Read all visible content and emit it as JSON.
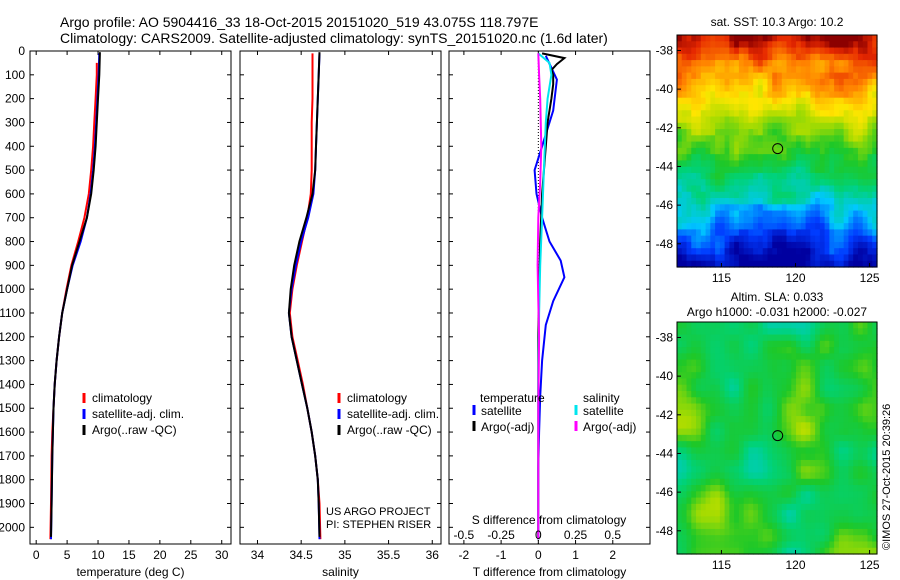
{
  "header": {
    "line1": "Argo profile: AO 5904416_33 18-Oct-2015 20151020_519 43.075S 118.797E",
    "line2": "Climatology: CARS2009. Satellite-adjusted climatology: synTS_20151020.nc (1.6d later)"
  },
  "credits": {
    "project": "US ARGO PROJECT",
    "pi": "PI: STEPHEN RISER",
    "imos": "©IMOS 27-Oct-2015 20:39:26"
  },
  "colors": {
    "climatology": "#ff0000",
    "satellite": "#0000ff",
    "argo": "#000000",
    "sal_satellite": "#00e5ee",
    "sal_argo": "#ff00ff"
  },
  "chart_data": [
    {
      "type": "line",
      "id": "temperature",
      "xlabel": "temperature (deg C)",
      "ylabel": "",
      "xlim": [
        -1,
        31.5
      ],
      "ylim": [
        2070,
        0
      ],
      "xticks": [
        0,
        5,
        10,
        15,
        20,
        25,
        30
      ],
      "yticks": [
        0,
        100,
        200,
        300,
        400,
        500,
        600,
        700,
        800,
        900,
        1000,
        1100,
        1200,
        1300,
        1400,
        1500,
        1600,
        1700,
        1800,
        1900,
        2000
      ],
      "legend": [
        "climatology",
        "satellite-adj. clim.",
        "Argo(..raw -QC)"
      ],
      "series": [
        {
          "name": "climatology",
          "color": "#ff0000",
          "x": [
            9.8,
            9.8,
            9.6,
            9.4,
            9.2,
            8.9,
            8.5,
            7.8,
            6.8,
            5.7,
            4.9,
            4.2,
            3.7,
            3.3,
            3.0,
            2.8,
            2.6,
            2.5,
            2.4,
            2.3
          ],
          "y": [
            50,
            100,
            200,
            300,
            400,
            500,
            600,
            700,
            800,
            900,
            1000,
            1100,
            1200,
            1300,
            1400,
            1500,
            1600,
            1700,
            1900,
            2050
          ]
        },
        {
          "name": "satellite-adj. clim.",
          "color": "#0000ff",
          "x": [
            10.2,
            10.1,
            9.9,
            9.7,
            9.5,
            9.2,
            8.8,
            8.2,
            7.2,
            5.9,
            5.0,
            4.2,
            3.7,
            3.3,
            3.0,
            2.8,
            2.7,
            2.6,
            2.5,
            2.4
          ],
          "y": [
            10,
            100,
            200,
            300,
            400,
            500,
            600,
            700,
            800,
            900,
            1000,
            1100,
            1200,
            1300,
            1400,
            1500,
            1600,
            1700,
            1900,
            2050
          ]
        },
        {
          "name": "Argo(..raw -QC)",
          "color": "#000000",
          "x": [
            10.3,
            10.2,
            10.0,
            9.8,
            9.6,
            9.3,
            8.9,
            8.2,
            7.0,
            5.8,
            5.0,
            4.2,
            3.7,
            3.3,
            3.0,
            2.8,
            2.7,
            2.6,
            2.5,
            2.4
          ],
          "y": [
            5,
            100,
            200,
            300,
            400,
            500,
            600,
            700,
            800,
            900,
            1000,
            1100,
            1200,
            1300,
            1400,
            1500,
            1600,
            1700,
            1900,
            2040
          ]
        }
      ]
    },
    {
      "type": "line",
      "id": "salinity",
      "xlabel": "salinity",
      "ylabel": "",
      "xlim": [
        33.8,
        36.1
      ],
      "ylim": [
        2070,
        0
      ],
      "xticks": [
        34,
        34.5,
        35,
        35.5,
        36
      ],
      "legend": [
        "climatology",
        "satellite-adj. clim.",
        "Argo(..raw -QC)"
      ],
      "series": [
        {
          "name": "climatology",
          "color": "#ff0000",
          "x": [
            34.63,
            34.63,
            34.63,
            34.62,
            34.62,
            34.62,
            34.61,
            34.57,
            34.51,
            34.45,
            34.4,
            34.37,
            34.4,
            34.46,
            34.52,
            34.57,
            34.62,
            34.66,
            34.69,
            34.71,
            34.72
          ],
          "y": [
            10,
            100,
            200,
            300,
            400,
            500,
            600,
            700,
            800,
            900,
            1000,
            1100,
            1200,
            1300,
            1400,
            1500,
            1600,
            1700,
            1800,
            1900,
            2050
          ]
        },
        {
          "name": "satellite-adj. clim.",
          "color": "#0000ff",
          "x": [
            34.71,
            34.7,
            34.69,
            34.68,
            34.67,
            34.66,
            34.64,
            34.58,
            34.5,
            34.44,
            34.39,
            34.36,
            34.39,
            34.45,
            34.51,
            34.57,
            34.62,
            34.66,
            34.69,
            34.7,
            34.71
          ],
          "y": [
            10,
            100,
            200,
            300,
            400,
            500,
            600,
            700,
            800,
            900,
            1000,
            1100,
            1200,
            1300,
            1400,
            1500,
            1600,
            1700,
            1800,
            1900,
            2050
          ]
        },
        {
          "name": "Argo(..raw -QC)",
          "color": "#000000",
          "x": [
            34.71,
            34.7,
            34.69,
            34.68,
            34.67,
            34.66,
            34.63,
            34.56,
            34.48,
            34.42,
            34.38,
            34.36,
            34.39,
            34.45,
            34.51,
            34.57,
            34.62,
            34.66,
            34.69,
            34.7,
            34.71
          ],
          "y": [
            5,
            100,
            200,
            300,
            400,
            500,
            600,
            700,
            800,
            900,
            1000,
            1100,
            1200,
            1300,
            1400,
            1500,
            1600,
            1700,
            1800,
            1900,
            2040
          ]
        }
      ]
    },
    {
      "type": "line",
      "id": "difference",
      "xlabel": "T difference from climatology",
      "xlabel_top": "S difference from climatology",
      "ylabel": "",
      "xlim": [
        -2.4,
        3.0
      ],
      "ylim": [
        2070,
        0
      ],
      "xticks": [
        -2,
        -1,
        0,
        1,
        2
      ],
      "xtick_labels": [
        "-2",
        "-1",
        "0",
        "1",
        "2"
      ],
      "xticks_top": [
        -0.5,
        -0.25,
        0,
        0.25,
        0.5
      ],
      "xtick_labels_top": [
        "-0.5",
        "-0.25",
        "0",
        "0.25",
        "0.5"
      ],
      "legend_left": {
        "title": "temperature",
        "items": [
          "satellite",
          "Argo(-adj)"
        ]
      },
      "legend_right": {
        "title": "salinity",
        "items": [
          "satellite",
          "Argo(-adj)"
        ]
      },
      "series": [
        {
          "name": "temperature satellite",
          "color": "#0000ff",
          "x": [
            0.2,
            0.5,
            0.4,
            0.1,
            -0.1,
            -0.05,
            0.1,
            0.3,
            0.6,
            0.7,
            0.4,
            0.2,
            0.1,
            0.05,
            0.02,
            0,
            0,
            0,
            0,
            0
          ],
          "y": [
            20,
            120,
            250,
            400,
            500,
            600,
            700,
            800,
            880,
            950,
            1050,
            1150,
            1300,
            1450,
            1600,
            1750,
            1850,
            1950,
            2000,
            2050
          ]
        },
        {
          "name": "temperature Argo(-adj)",
          "color": "#000000",
          "x": [
            0.1,
            0.7,
            0.5,
            0.35,
            0.4,
            0.4,
            0.35,
            0.25,
            0.2,
            0.1,
            0.05,
            0.02,
            0,
            0,
            0,
            0
          ],
          "y": [
            10,
            30,
            55,
            80,
            100,
            140,
            200,
            300,
            400,
            600,
            800,
            1000,
            1200,
            1500,
            1800,
            2050
          ]
        },
        {
          "name": "salinity satellite",
          "color": "#00e5ee",
          "x": [
            0.0,
            0.3,
            0.35,
            0.25,
            0.2,
            0.15,
            0.1,
            0.05,
            0.02,
            0,
            0,
            0
          ],
          "y": [
            10,
            50,
            100,
            200,
            300,
            500,
            700,
            900,
            1100,
            1400,
            1800,
            2050
          ]
        },
        {
          "name": "salinity Argo(-adj)",
          "color": "#ff00ff",
          "x": [
            0.0,
            0.02,
            0.05,
            0.08,
            0.05,
            0.0,
            -0.02,
            0.0,
            0.02,
            0.0,
            0.0,
            0.0
          ],
          "y": [
            10,
            100,
            200,
            400,
            550,
            700,
            900,
            1050,
            1200,
            1500,
            1800,
            2050
          ]
        }
      ]
    },
    {
      "type": "heatmap",
      "id": "sst-map",
      "title": "sat. SST: 10.3 Argo: 10.2",
      "xlim": [
        112,
        125.5
      ],
      "ylim": [
        -49.2,
        -37.2
      ],
      "xticks": [
        115,
        120,
        125
      ],
      "yticks": [
        -38,
        -40,
        -42,
        -44,
        -46,
        -48
      ],
      "marker": {
        "lon": 118.797,
        "lat": -43.075
      }
    },
    {
      "type": "heatmap",
      "id": "sla-map",
      "title": "Altim. SLA: 0.033",
      "subtitle": "Argo h1000: -0.031 h2000: -0.027",
      "xlim": [
        112,
        125.5
      ],
      "ylim": [
        -49.2,
        -37.2
      ],
      "xticks": [
        115,
        120,
        125
      ],
      "yticks": [
        -38,
        -40,
        -42,
        -44,
        -46,
        -48
      ],
      "marker": {
        "lon": 118.797,
        "lat": -43.075
      }
    }
  ]
}
